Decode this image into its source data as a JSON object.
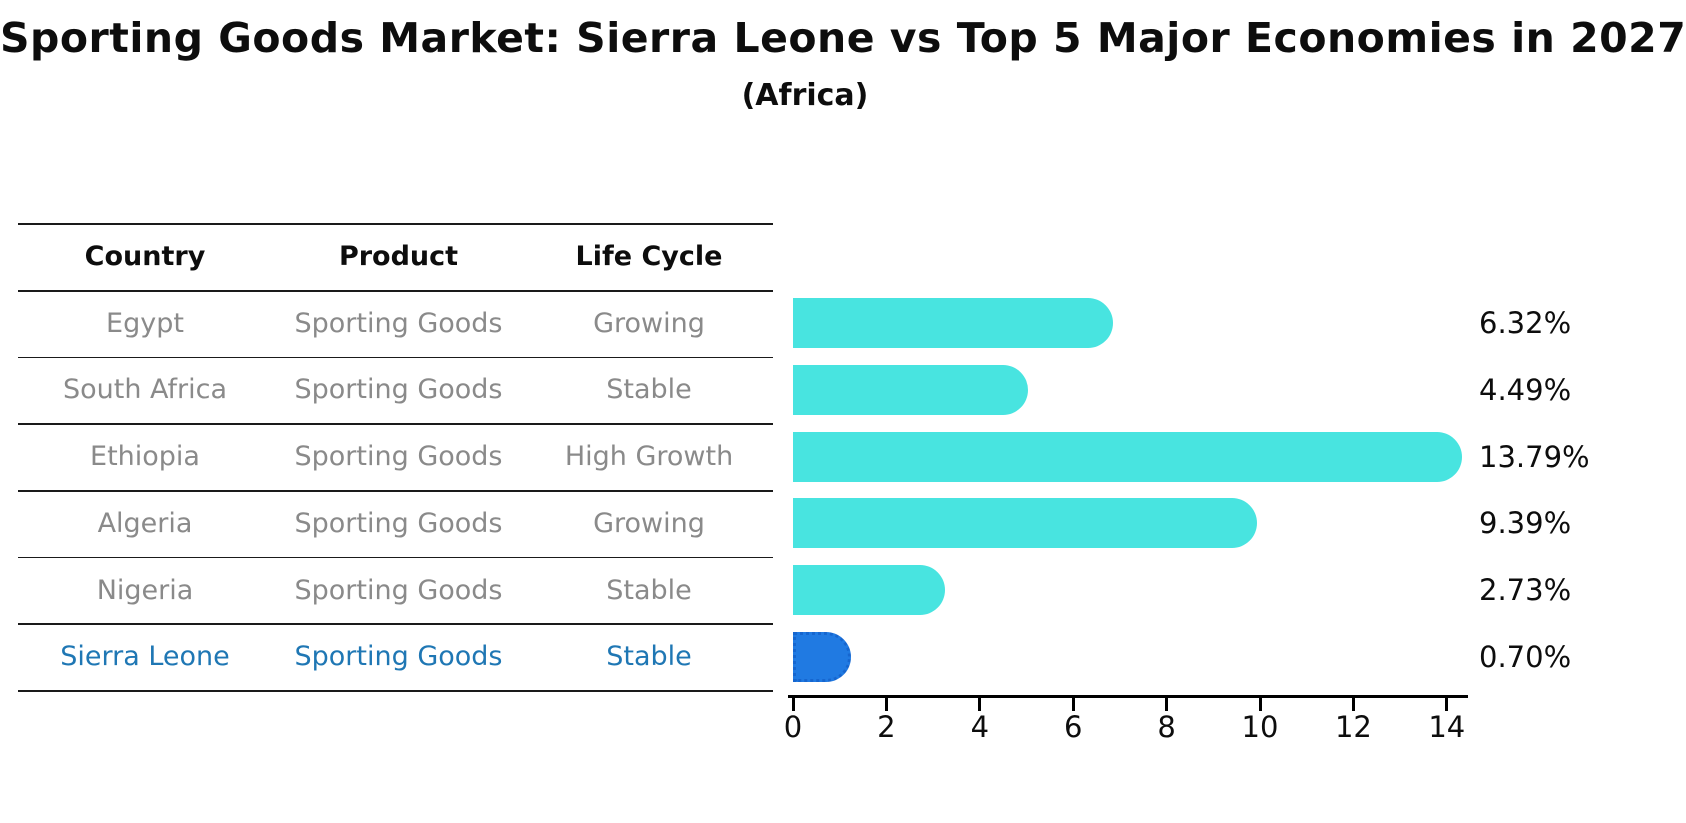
{
  "title": "Sporting Goods Market: Sierra Leone vs Top 5 Major Economies in 2027",
  "subtitle": "(Africa)",
  "colors": {
    "bar": "#48e4e0",
    "highlight_bar": "#207ae2",
    "highlight_bar_edge": "#1666cf",
    "highlight_text": "#1f77b4",
    "row_text": "#8a8a8a",
    "header_text": "#0d0d0d",
    "axis": "#000000"
  },
  "table": {
    "headers": [
      "Country",
      "Product",
      "Life Cycle"
    ],
    "rows": [
      {
        "country": "Egypt",
        "product": "Sporting Goods",
        "life_cycle": "Growing",
        "highlight": false
      },
      {
        "country": "South Africa",
        "product": "Sporting Goods",
        "life_cycle": "Stable",
        "highlight": false
      },
      {
        "country": "Ethiopia",
        "product": "Sporting Goods",
        "life_cycle": "High Growth",
        "highlight": false
      },
      {
        "country": "Algeria",
        "product": "Sporting Goods",
        "life_cycle": "Growing",
        "highlight": false
      },
      {
        "country": "Nigeria",
        "product": "Sporting Goods",
        "life_cycle": "Stable",
        "highlight": false
      },
      {
        "country": "Sierra Leone",
        "product": "Sporting Goods",
        "life_cycle": "Stable",
        "highlight": true
      }
    ]
  },
  "chart_data": {
    "type": "bar",
    "orientation": "horizontal",
    "title": "Sporting Goods Market: Sierra Leone vs Top 5 Major Economies in 2027",
    "subtitle": "(Africa)",
    "categories": [
      "Egypt",
      "South Africa",
      "Ethiopia",
      "Algeria",
      "Nigeria",
      "Sierra Leone"
    ],
    "values": [
      6.32,
      4.49,
      13.79,
      9.39,
      2.73,
      0.7
    ],
    "value_labels": [
      "6.32%",
      "4.49%",
      "13.79%",
      "9.39%",
      "2.73%",
      "0.70%"
    ],
    "highlight_index": 5,
    "xlabel": "",
    "ylabel": "",
    "x_ticks": [
      0,
      2,
      4,
      6,
      8,
      10,
      12,
      14
    ],
    "xlim": [
      0,
      14.45
    ],
    "grid": false,
    "legend": false
  }
}
